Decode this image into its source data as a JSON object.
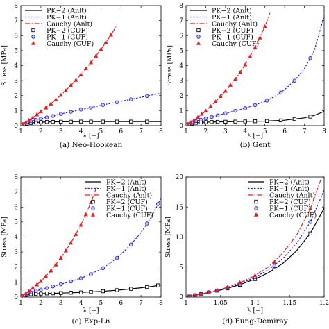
{
  "chart_data": [
    {
      "type": "line",
      "caption": "(a)  Neo-Hookean",
      "xlabel": "λ [−]",
      "ylabel": "Stress [MPa]",
      "xlim": [
        1,
        8
      ],
      "ylim": [
        0,
        8
      ],
      "xticks": [
        1,
        2,
        3,
        4,
        5,
        6,
        7,
        8
      ],
      "xtick_labels": [
        "1",
        "2",
        "3",
        "4",
        "5",
        "6",
        "7",
        "8"
      ],
      "yticks": [
        0,
        1,
        2,
        3,
        4,
        5,
        6,
        7,
        8
      ],
      "ytick_labels": [
        "0",
        "1",
        "2",
        "3",
        "4",
        "5",
        "6",
        "7",
        "8"
      ],
      "legend_position": "top-left",
      "series": [
        {
          "name": "PK−2 (Anlt)",
          "kind": "line",
          "color": "#000000",
          "dash": "",
          "x": [
            1,
            1.1,
            1.25,
            1.5,
            2,
            2.5,
            3,
            4,
            5,
            6,
            7,
            8
          ],
          "y": [
            0,
            0.06,
            0.12,
            0.18,
            0.23,
            0.25,
            0.26,
            0.27,
            0.27,
            0.27,
            0.27,
            0.27
          ]
        },
        {
          "name": "PK−1 (Anlt)",
          "kind": "line",
          "color": "#1f1fe0",
          "dash": "2.5,2",
          "x": [
            1,
            1.5,
            2,
            3,
            4,
            5,
            6,
            7,
            8
          ],
          "y": [
            0,
            0.29,
            0.46,
            0.78,
            1.07,
            1.35,
            1.62,
            1.89,
            2.16
          ]
        },
        {
          "name": "Cauchy (Anlt)",
          "kind": "line",
          "color": "#e02020",
          "dash": "7,2.5,1.5,2.5",
          "x": [
            1,
            1.25,
            1.5,
            2,
            2.5,
            3,
            3.5,
            4,
            4.5,
            5,
            5.5,
            5.75
          ],
          "y": [
            0,
            0.21,
            0.44,
            0.93,
            1.45,
            2.03,
            2.68,
            3.4,
            4.2,
            5.08,
            6.04,
            6.6
          ]
        },
        {
          "name": "PK−2 (CUF)",
          "kind": "marker",
          "marker": "square",
          "color": "#000000",
          "x": [
            1.05,
            1.15,
            1.3,
            1.5,
            1.75,
            2,
            2.3,
            2.6,
            3,
            3.5,
            4,
            4.5,
            5.1,
            5.8,
            6.5,
            7.3
          ],
          "y": [
            0.03,
            0.08,
            0.13,
            0.18,
            0.21,
            0.23,
            0.24,
            0.25,
            0.26,
            0.26,
            0.27,
            0.27,
            0.27,
            0.27,
            0.27,
            0.27
          ]
        },
        {
          "name": "PK−1 (CUF)",
          "kind": "marker",
          "marker": "circle",
          "color": "#1f1fe0",
          "x": [
            1.05,
            1.15,
            1.3,
            1.5,
            1.75,
            2,
            2.3,
            2.6,
            3,
            3.5,
            4,
            4.5,
            5.1,
            5.8,
            6.5,
            7.3
          ],
          "y": [
            0.03,
            0.1,
            0.2,
            0.29,
            0.38,
            0.46,
            0.55,
            0.65,
            0.78,
            0.92,
            1.07,
            1.21,
            1.38,
            1.56,
            1.75,
            1.97
          ]
        },
        {
          "name": "Cauchy (CUF)",
          "kind": "marker",
          "marker": "triangle",
          "color": "#e02020",
          "x": [
            1.1,
            1.25,
            1.4,
            1.6,
            1.8,
            2,
            2.25,
            2.5,
            2.75,
            3,
            3.25,
            3.5,
            3.75,
            4,
            4.25,
            4.5,
            4.75,
            5,
            5.25,
            5.5
          ],
          "y": [
            0.08,
            0.21,
            0.35,
            0.53,
            0.73,
            0.93,
            1.19,
            1.45,
            1.73,
            2.03,
            2.34,
            2.68,
            3.03,
            3.4,
            3.8,
            4.2,
            4.64,
            5.08,
            5.55,
            6.04
          ]
        }
      ]
    },
    {
      "type": "line",
      "caption": "(b)  Gent",
      "xlabel": "λ [−]",
      "ylabel": "Stress [MPa]",
      "xlim": [
        1,
        8
      ],
      "ylim": [
        0,
        8
      ],
      "xticks": [
        1,
        2,
        3,
        4,
        5,
        6,
        7,
        8
      ],
      "xtick_labels": [
        "1",
        "2",
        "3",
        "4",
        "5",
        "6",
        "7",
        "8"
      ],
      "yticks": [
        0,
        1,
        2,
        3,
        4,
        5,
        6,
        7,
        8
      ],
      "ytick_labels": [
        "0",
        "1",
        "2",
        "3",
        "4",
        "5",
        "6",
        "7",
        "8"
      ],
      "legend_position": "top-left",
      "series": [
        {
          "name": "PK−2 (Anlt)",
          "kind": "line",
          "color": "#000000",
          "dash": "",
          "x": [
            1,
            1.1,
            1.3,
            1.6,
            2,
            3,
            4,
            5,
            6,
            7,
            7.5,
            8
          ],
          "y": [
            0,
            0.06,
            0.14,
            0.2,
            0.23,
            0.26,
            0.28,
            0.3,
            0.36,
            0.52,
            0.68,
            0.95
          ]
        },
        {
          "name": "PK−1 (Anlt)",
          "kind": "line",
          "color": "#1f1fe0",
          "dash": "2.5,2",
          "x": [
            1,
            1.5,
            2,
            3,
            4,
            5,
            5.5,
            6,
            6.5,
            7,
            7.5,
            8
          ],
          "y": [
            0,
            0.3,
            0.48,
            0.82,
            1.16,
            1.6,
            1.95,
            2.4,
            3.0,
            3.8,
            5.0,
            7.3
          ]
        },
        {
          "name": "Cauchy (Anlt)",
          "kind": "line",
          "color": "#e02020",
          "dash": "7,2.5,1.5,2.5",
          "x": [
            1,
            1.5,
            2,
            2.5,
            3,
            3.5,
            4,
            4.5,
            5,
            5.25
          ],
          "y": [
            0,
            0.45,
            0.98,
            1.6,
            2.3,
            3.1,
            4.05,
            5.2,
            6.6,
            7.5
          ]
        },
        {
          "name": "PK−2 (CUF)",
          "kind": "marker",
          "marker": "square",
          "color": "#000000",
          "x": [
            1.05,
            1.15,
            1.3,
            1.5,
            1.75,
            2,
            2.3,
            2.6,
            3,
            3.5,
            4,
            4.5,
            5.1,
            5.8,
            6.5,
            7.3
          ],
          "y": [
            0.03,
            0.09,
            0.14,
            0.19,
            0.21,
            0.23,
            0.24,
            0.25,
            0.26,
            0.27,
            0.28,
            0.29,
            0.31,
            0.35,
            0.44,
            0.6
          ]
        },
        {
          "name": "PK−1 (CUF)",
          "kind": "marker",
          "marker": "circle",
          "color": "#1f1fe0",
          "x": [
            1.05,
            1.15,
            1.3,
            1.5,
            1.75,
            2,
            2.3,
            2.6,
            3,
            3.5,
            4,
            4.5,
            5.1,
            5.8,
            6.5,
            7.3
          ],
          "y": [
            0.03,
            0.1,
            0.2,
            0.3,
            0.4,
            0.48,
            0.58,
            0.68,
            0.82,
            0.99,
            1.16,
            1.37,
            1.67,
            2.2,
            3.0,
            4.5
          ]
        },
        {
          "name": "Cauchy (CUF)",
          "kind": "marker",
          "marker": "triangle",
          "color": "#e02020",
          "x": [
            1.1,
            1.25,
            1.4,
            1.6,
            1.8,
            2,
            2.25,
            2.5,
            2.75,
            3,
            3.25,
            3.5,
            3.75,
            4,
            4.25,
            4.5,
            4.75,
            5
          ],
          "y": [
            0.08,
            0.22,
            0.35,
            0.55,
            0.77,
            0.98,
            1.28,
            1.6,
            1.95,
            2.3,
            2.7,
            3.1,
            3.55,
            4.05,
            4.6,
            5.2,
            5.85,
            6.6
          ]
        }
      ]
    },
    {
      "type": "line",
      "caption": "(c)  Exp-Ln",
      "xlabel": "λ [−]",
      "ylabel": "Stress [MPa]",
      "xlim": [
        1,
        8
      ],
      "ylim": [
        0,
        8
      ],
      "xticks": [
        1,
        2,
        3,
        4,
        5,
        6,
        7,
        8
      ],
      "xtick_labels": [
        "1",
        "2",
        "3",
        "4",
        "5",
        "6",
        "7",
        "8"
      ],
      "yticks": [
        0,
        1,
        2,
        3,
        4,
        5,
        6,
        7,
        8
      ],
      "ytick_labels": [
        "0",
        "1",
        "2",
        "3",
        "4",
        "5",
        "6",
        "7",
        "8"
      ],
      "legend_position": "top-right",
      "series": [
        {
          "name": "PK−2 (Anlt)",
          "kind": "line",
          "color": "#000000",
          "dash": "",
          "x": [
            1,
            1.1,
            1.3,
            1.6,
            2,
            3,
            4,
            5,
            6,
            7,
            7.5,
            8
          ],
          "y": [
            0,
            0.07,
            0.15,
            0.2,
            0.23,
            0.27,
            0.31,
            0.38,
            0.48,
            0.62,
            0.7,
            0.8
          ]
        },
        {
          "name": "PK−1 (Anlt)",
          "kind": "line",
          "color": "#1f1fe0",
          "dash": "2.5,2",
          "x": [
            1,
            1.5,
            2,
            3,
            4,
            5,
            5.5,
            6,
            6.5,
            7,
            7.5,
            7.85,
            8
          ],
          "y": [
            0,
            0.32,
            0.5,
            0.85,
            1.25,
            1.85,
            2.3,
            2.85,
            3.5,
            4.3,
            5.3,
            6.2,
            6.6
          ]
        },
        {
          "name": "Cauchy (Anlt)",
          "kind": "line",
          "color": "#e02020",
          "dash": "7,2.5,1.5,2.5",
          "x": [
            1,
            1.5,
            2,
            2.5,
            3,
            3.5,
            4,
            4.5,
            4.8
          ],
          "y": [
            0,
            0.5,
            1.05,
            1.75,
            2.6,
            3.6,
            4.8,
            6.3,
            7.4
          ]
        },
        {
          "name": "PK−2 (CUF)",
          "kind": "marker",
          "marker": "square",
          "color": "#000000",
          "x": [
            1.05,
            1.15,
            1.3,
            1.5,
            1.75,
            2,
            2.3,
            2.6,
            3,
            3.5,
            4,
            4.5,
            5.1,
            5.8,
            6.5,
            7.3,
            7.85
          ],
          "y": [
            0.03,
            0.1,
            0.15,
            0.19,
            0.21,
            0.23,
            0.24,
            0.25,
            0.27,
            0.29,
            0.31,
            0.34,
            0.39,
            0.46,
            0.55,
            0.67,
            0.78
          ]
        },
        {
          "name": "PK−1 (CUF)",
          "kind": "marker",
          "marker": "circle",
          "color": "#1f1fe0",
          "x": [
            1.05,
            1.15,
            1.3,
            1.5,
            1.75,
            2,
            2.3,
            2.6,
            3,
            3.5,
            4,
            4.5,
            5.1,
            5.8,
            6.5,
            7.3,
            7.85
          ],
          "y": [
            0.03,
            0.1,
            0.22,
            0.32,
            0.42,
            0.5,
            0.6,
            0.71,
            0.85,
            1.04,
            1.25,
            1.52,
            1.93,
            2.6,
            3.5,
            4.9,
            6.2
          ]
        },
        {
          "name": "Cauchy (CUF)",
          "kind": "marker",
          "marker": "triangle",
          "color": "#e02020",
          "x": [
            1.1,
            1.25,
            1.4,
            1.6,
            1.8,
            2,
            2.25,
            2.5,
            2.75,
            3,
            3.25,
            3.5,
            3.75,
            4,
            4.25,
            4.5
          ],
          "y": [
            0.09,
            0.24,
            0.39,
            0.6,
            0.82,
            1.05,
            1.38,
            1.75,
            2.15,
            2.6,
            3.08,
            3.6,
            4.18,
            4.8,
            5.5,
            6.3
          ]
        }
      ]
    },
    {
      "type": "line",
      "caption": "(d)  Fung-Demiray",
      "xlabel": "λ [−]",
      "ylabel": "Stress [MPa]",
      "xlim": [
        1,
        1.2
      ],
      "ylim": [
        0,
        20
      ],
      "xticks": [
        1,
        1.05,
        1.1,
        1.15,
        1.2
      ],
      "xtick_labels": [
        "1",
        "1.05",
        "1.1",
        "1.15",
        "1.2"
      ],
      "yticks": [
        0,
        5,
        10,
        15,
        20
      ],
      "ytick_labels": [
        "0",
        "5",
        "10",
        "15",
        "20"
      ],
      "legend_position": "top-right",
      "series": [
        {
          "name": "PK−2 (Anlt)",
          "kind": "line",
          "color": "#000000",
          "dash": "",
          "x": [
            1,
            1.02,
            1.04,
            1.06,
            1.08,
            1.1,
            1.12,
            1.14,
            1.16,
            1.18,
            1.2
          ],
          "y": [
            0,
            0.45,
            0.9,
            1.45,
            2.15,
            3.0,
            4.1,
            5.6,
            7.7,
            10.6,
            14.8
          ]
        },
        {
          "name": "PK−1 (Anlt)",
          "kind": "line",
          "color": "#1f1fe0",
          "dash": "2.5,2",
          "x": [
            1,
            1.02,
            1.04,
            1.06,
            1.08,
            1.1,
            1.12,
            1.14,
            1.16,
            1.18,
            1.2
          ],
          "y": [
            0,
            0.46,
            0.94,
            1.54,
            2.32,
            3.3,
            4.6,
            6.4,
            8.9,
            12.5,
            17.8
          ]
        },
        {
          "name": "Cauchy (Anlt)",
          "kind": "line",
          "color": "#e02020",
          "dash": "7,2.5,1.5,2.5",
          "x": [
            1,
            1.02,
            1.04,
            1.06,
            1.08,
            1.1,
            1.12,
            1.14,
            1.16,
            1.18,
            1.195
          ],
          "y": [
            0,
            0.47,
            0.98,
            1.63,
            2.5,
            3.6,
            5.1,
            7.3,
            10.3,
            14.7,
            19.5
          ]
        },
        {
          "name": "PK−2 (CUF)",
          "kind": "marker",
          "marker": "square",
          "color": "#000000",
          "x": [
            1.005,
            1.013,
            1.022,
            1.033,
            1.045,
            1.06,
            1.078,
            1.1,
            1.128,
            1.18
          ],
          "y": [
            0.1,
            0.29,
            0.5,
            0.77,
            1.07,
            1.45,
            2.05,
            3.0,
            4.6,
            10.6
          ]
        },
        {
          "name": "PK−1 (CUF)",
          "kind": "marker",
          "marker": "circle",
          "color": "#1f1fe0",
          "x": [
            1.005,
            1.013,
            1.022,
            1.033,
            1.045,
            1.06,
            1.078,
            1.1,
            1.128,
            1.18
          ],
          "y": [
            0.1,
            0.3,
            0.51,
            0.8,
            1.12,
            1.54,
            2.22,
            3.3,
            5.2,
            12.5
          ]
        },
        {
          "name": "Cauchy (CUF)",
          "kind": "marker",
          "marker": "triangle",
          "color": "#e02020",
          "x": [
            1.005,
            1.013,
            1.022,
            1.033,
            1.045,
            1.06,
            1.078,
            1.1,
            1.128,
            1.18
          ],
          "y": [
            0.1,
            0.3,
            0.52,
            0.83,
            1.17,
            1.63,
            2.4,
            3.6,
            5.8,
            14.7
          ]
        }
      ]
    }
  ]
}
